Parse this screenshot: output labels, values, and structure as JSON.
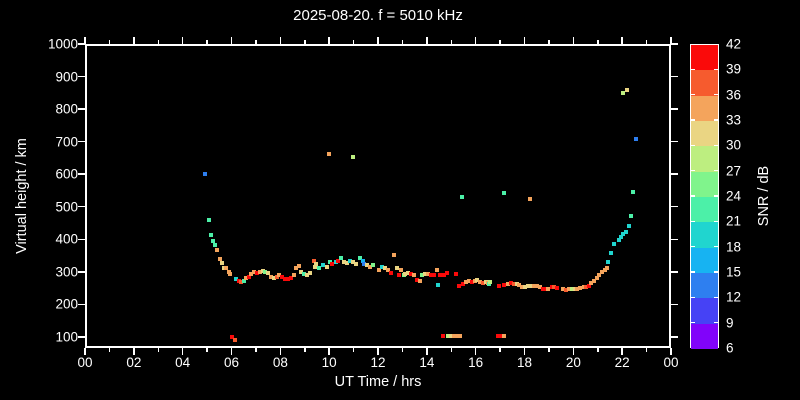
{
  "title": "2025-08-20. f = 5010 kHz",
  "chart_data": {
    "type": "scatter",
    "title": "2025-08-20. f = 5010 kHz",
    "xlabel": "UT Time / hrs",
    "ylabel": "Virtual height / km",
    "xlim": [
      0,
      24
    ],
    "ylim": [
      66,
      1000
    ],
    "grid": false,
    "xticks_major": {
      "values": [
        0,
        2,
        4,
        6,
        8,
        10,
        12,
        14,
        16,
        18,
        20,
        22,
        24
      ],
      "labels": [
        "00",
        "02",
        "04",
        "06",
        "08",
        "10",
        "12",
        "14",
        "16",
        "18",
        "20",
        "22",
        "00"
      ]
    },
    "xticks_minor": [
      1,
      3,
      5,
      7,
      9,
      11,
      13,
      15,
      17,
      19,
      21,
      23
    ],
    "yticks": {
      "values": [
        100,
        200,
        300,
        400,
        500,
        600,
        700,
        800,
        900,
        1000
      ],
      "labels": [
        "100",
        "200",
        "300",
        "400",
        "500",
        "600",
        "700",
        "800",
        "900",
        "1000"
      ]
    },
    "colorbar": {
      "label": "SNR / dB",
      "vmin": 6,
      "vmax": 42,
      "step": 3,
      "tick_labels": [
        "6",
        "9",
        "12",
        "15",
        "18",
        "21",
        "24",
        "27",
        "30",
        "33",
        "36",
        "39",
        "42"
      ],
      "colors_bottom_to_top": [
        "#8103fa",
        "#4642f5",
        "#2e7ff0",
        "#17b3f2",
        "#20d5cf",
        "#4cf0a8",
        "#80f48c",
        "#bdee80",
        "#ead583",
        "#f4a45c",
        "#f65b2e",
        "#fa0a0a"
      ]
    },
    "points_format": [
      "ut_hours",
      "virtual_height_km",
      "snr_db"
    ],
    "points": [
      [
        4.92,
        600,
        13
      ],
      [
        5.06,
        459,
        22
      ],
      [
        5.14,
        412,
        22
      ],
      [
        5.23,
        396,
        22
      ],
      [
        5.31,
        382,
        22
      ],
      [
        5.4,
        367,
        34
      ],
      [
        5.52,
        339,
        34
      ],
      [
        5.62,
        326,
        31
      ],
      [
        5.71,
        313,
        31
      ],
      [
        5.79,
        312,
        34
      ],
      [
        5.88,
        300,
        34
      ],
      [
        5.95,
        293,
        34
      ],
      [
        6.03,
        100,
        40
      ],
      [
        6.15,
        92,
        37
      ],
      [
        6.2,
        278,
        19
      ],
      [
        6.29,
        272,
        40
      ],
      [
        6.4,
        269,
        37
      ],
      [
        6.52,
        272,
        22
      ],
      [
        6.61,
        281,
        34
      ],
      [
        6.71,
        284,
        40
      ],
      [
        6.81,
        294,
        34
      ],
      [
        6.91,
        300,
        34
      ],
      [
        7.03,
        297,
        40
      ],
      [
        7.15,
        300,
        34
      ],
      [
        7.27,
        303,
        31
      ],
      [
        7.38,
        300,
        25
      ],
      [
        7.5,
        297,
        31
      ],
      [
        7.63,
        284,
        34
      ],
      [
        7.74,
        281,
        31
      ],
      [
        7.85,
        284,
        37
      ],
      [
        7.96,
        289,
        34
      ],
      [
        8.08,
        284,
        40
      ],
      [
        8.2,
        279,
        40
      ],
      [
        8.31,
        279,
        40
      ],
      [
        8.43,
        281,
        40
      ],
      [
        8.54,
        291,
        34
      ],
      [
        8.66,
        312,
        34
      ],
      [
        8.76,
        317,
        34
      ],
      [
        8.86,
        300,
        31
      ],
      [
        8.97,
        294,
        22
      ],
      [
        9.08,
        289,
        31
      ],
      [
        9.2,
        297,
        31
      ],
      [
        9.36,
        334,
        37
      ],
      [
        9.42,
        315,
        31
      ],
      [
        9.47,
        324,
        31
      ],
      [
        9.6,
        312,
        22
      ],
      [
        9.76,
        320,
        19
      ],
      [
        9.9,
        315,
        31
      ],
      [
        10.01,
        662,
        34
      ],
      [
        10.02,
        330,
        22
      ],
      [
        10.13,
        324,
        40
      ],
      [
        10.26,
        330,
        19
      ],
      [
        10.38,
        334,
        40
      ],
      [
        10.5,
        343,
        22
      ],
      [
        10.61,
        330,
        31
      ],
      [
        10.72,
        327,
        31
      ],
      [
        10.84,
        334,
        19
      ],
      [
        10.97,
        330,
        31
      ],
      [
        10.98,
        652,
        28
      ],
      [
        11.11,
        324,
        31
      ],
      [
        11.25,
        343,
        22
      ],
      [
        11.38,
        332,
        16
      ],
      [
        11.44,
        324,
        13
      ],
      [
        11.55,
        320,
        31
      ],
      [
        11.68,
        315,
        34
      ],
      [
        11.81,
        320,
        25
      ],
      [
        12.03,
        305,
        34
      ],
      [
        12.16,
        315,
        19
      ],
      [
        12.29,
        312,
        31
      ],
      [
        12.4,
        306,
        34
      ],
      [
        12.53,
        297,
        40
      ],
      [
        12.64,
        351,
        34
      ],
      [
        12.77,
        312,
        31
      ],
      [
        12.84,
        291,
        40
      ],
      [
        12.94,
        305,
        34
      ],
      [
        13.06,
        289,
        25
      ],
      [
        13.09,
        294,
        31
      ],
      [
        13.21,
        297,
        31
      ],
      [
        13.34,
        294,
        40
      ],
      [
        13.47,
        289,
        34
      ],
      [
        13.59,
        276,
        40
      ],
      [
        13.7,
        272,
        34
      ],
      [
        13.79,
        289,
        25
      ],
      [
        13.91,
        294,
        31
      ],
      [
        14.03,
        294,
        34
      ],
      [
        14.16,
        289,
        40
      ],
      [
        14.29,
        289,
        40
      ],
      [
        14.41,
        306,
        34
      ],
      [
        14.46,
        260,
        19
      ],
      [
        14.55,
        289,
        40
      ],
      [
        14.68,
        103,
        40
      ],
      [
        14.71,
        289,
        40
      ],
      [
        14.82,
        296,
        40
      ],
      [
        14.85,
        103,
        28
      ],
      [
        14.97,
        103,
        31
      ],
      [
        15.1,
        103,
        34
      ],
      [
        15.18,
        292,
        40
      ],
      [
        15.22,
        103,
        34
      ],
      [
        15.32,
        258,
        40
      ],
      [
        15.35,
        103,
        34
      ],
      [
        15.43,
        530,
        22
      ],
      [
        15.5,
        262,
        40
      ],
      [
        15.61,
        268,
        34
      ],
      [
        15.72,
        272,
        34
      ],
      [
        15.84,
        268,
        40
      ],
      [
        15.96,
        272,
        34
      ],
      [
        16.07,
        276,
        31
      ],
      [
        16.18,
        268,
        34
      ],
      [
        16.3,
        265,
        37
      ],
      [
        16.41,
        268,
        31
      ],
      [
        16.5,
        265,
        34
      ],
      [
        16.53,
        262,
        22
      ],
      [
        16.58,
        268,
        28
      ],
      [
        16.9,
        103,
        40
      ],
      [
        16.95,
        258,
        40
      ],
      [
        17.03,
        103,
        40
      ],
      [
        17.14,
        542,
        22
      ],
      [
        17.16,
        103,
        34
      ],
      [
        17.18,
        260,
        40
      ],
      [
        17.31,
        262,
        34
      ],
      [
        17.44,
        265,
        40
      ],
      [
        17.56,
        262,
        37
      ],
      [
        17.68,
        262,
        31
      ],
      [
        17.79,
        260,
        34
      ],
      [
        17.9,
        254,
        34
      ],
      [
        18.02,
        254,
        31
      ],
      [
        18.15,
        258,
        31
      ],
      [
        18.21,
        524,
        34
      ],
      [
        18.29,
        257,
        31
      ],
      [
        18.4,
        258,
        34
      ],
      [
        18.52,
        257,
        34
      ],
      [
        18.64,
        252,
        34
      ],
      [
        18.75,
        248,
        40
      ],
      [
        18.86,
        246,
        40
      ],
      [
        18.98,
        248,
        34
      ],
      [
        19.11,
        252,
        40
      ],
      [
        19.22,
        254,
        37
      ],
      [
        19.34,
        250,
        40
      ],
      [
        19.57,
        246,
        34
      ],
      [
        19.68,
        244,
        37
      ],
      [
        19.82,
        246,
        34
      ],
      [
        19.95,
        248,
        28
      ],
      [
        20.06,
        248,
        31
      ],
      [
        20.17,
        248,
        34
      ],
      [
        20.29,
        250,
        34
      ],
      [
        20.42,
        252,
        34
      ],
      [
        20.52,
        254,
        37
      ],
      [
        20.63,
        258,
        40
      ],
      [
        20.74,
        265,
        34
      ],
      [
        20.85,
        272,
        34
      ],
      [
        20.96,
        281,
        34
      ],
      [
        21.07,
        289,
        34
      ],
      [
        21.18,
        300,
        34
      ],
      [
        21.29,
        306,
        34
      ],
      [
        21.38,
        312,
        34
      ],
      [
        21.44,
        330,
        19
      ],
      [
        21.54,
        358,
        19
      ],
      [
        21.66,
        386,
        19
      ],
      [
        21.85,
        398,
        19
      ],
      [
        21.95,
        407,
        19
      ],
      [
        22.03,
        416,
        19
      ],
      [
        22.15,
        422,
        19
      ],
      [
        22.28,
        441,
        19
      ],
      [
        22.38,
        472,
        22
      ],
      [
        22.44,
        545,
        22
      ],
      [
        22.56,
        708,
        13
      ],
      [
        22.03,
        850,
        28
      ],
      [
        22.19,
        858,
        31
      ]
    ]
  }
}
